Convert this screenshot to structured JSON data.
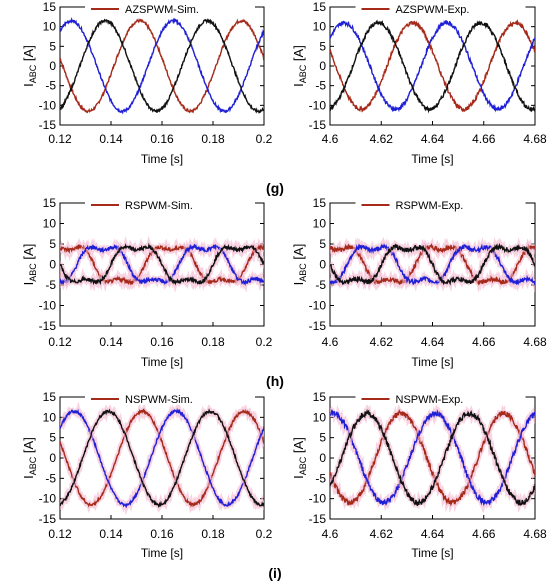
{
  "colors": {
    "phase_a": "#a52a1a",
    "phase_b": "#1f1fd6",
    "phase_c": "#111111",
    "shade": "#f4b6cf"
  },
  "panel_labels": [
    "(g)",
    "(h)",
    "(i)"
  ],
  "chart_data": [
    {
      "type": "line",
      "legend": "AZSPWM-Sim.",
      "ylabel": "I_ABC [A]",
      "xlabel": "Time [s]",
      "xlim": [
        0.12,
        0.2
      ],
      "ylim": [
        -15,
        15
      ],
      "xticks": [
        "0.12",
        "0.14",
        "0.16",
        "0.18",
        "0.2"
      ],
      "yticks": [
        "-15",
        "-10",
        "-5",
        "0",
        "5",
        "10",
        "15"
      ],
      "amplitude": 11.5,
      "period": 0.04,
      "phase_a_at_xmin": 170,
      "noise": 0.35,
      "shaded": false
    },
    {
      "type": "line",
      "legend": "AZSPWM-Exp.",
      "ylabel": "I_ABC [A]",
      "xlabel": "Time [s]",
      "xlim": [
        4.6,
        4.68
      ],
      "ylim": [
        -15,
        15
      ],
      "xticks": [
        "4.6",
        "4.62",
        "4.64",
        "4.66",
        "4.68"
      ],
      "yticks": [
        "-15",
        "-10",
        "-5",
        "0",
        "5",
        "10",
        "15"
      ],
      "amplitude": 11,
      "period": 0.04,
      "phase_a_at_xmin": 160,
      "noise": 0.5,
      "shaded": false
    },
    {
      "type": "line",
      "legend": "RSPWM-Sim.",
      "ylabel": "I_ABC [A]",
      "xlabel": "Time [s]",
      "xlim": [
        0.12,
        0.2
      ],
      "ylim": [
        -15,
        15
      ],
      "xticks": [
        "0.12",
        "0.14",
        "0.16",
        "0.18",
        "0.2"
      ],
      "yticks": [
        "-15",
        "-10",
        "-5",
        "0",
        "5",
        "10",
        "15"
      ],
      "amplitude": 5,
      "period": 0.04,
      "phase_a_at_xmin": 60,
      "noise": 0.45,
      "shaded": true
    },
    {
      "type": "line",
      "legend": "RSPWM-Exp.",
      "ylabel": "I_ABC [A]",
      "xlabel": "Time [s]",
      "xlim": [
        4.6,
        4.68
      ],
      "ylim": [
        -15,
        15
      ],
      "xticks": [
        "4.6",
        "4.62",
        "4.64",
        "4.66",
        "4.68"
      ],
      "yticks": [
        "-15",
        "-10",
        "-5",
        "0",
        "5",
        "10",
        "15"
      ],
      "amplitude": 5,
      "period": 0.04,
      "phase_a_at_xmin": 60,
      "noise": 0.55,
      "shaded": true
    },
    {
      "type": "line",
      "legend": "NSPWM-Sim.",
      "ylabel": "I_ABC [A]",
      "xlabel": "Time [s]",
      "xlim": [
        0.12,
        0.2
      ],
      "ylim": [
        -15,
        15
      ],
      "xticks": [
        "0.12",
        "0.14",
        "0.16",
        "0.18",
        "0.2"
      ],
      "yticks": [
        "-15",
        "-10",
        "-5",
        "0",
        "5",
        "10",
        "15"
      ],
      "amplitude": 11.5,
      "period": 0.04,
      "phase_a_at_xmin": 160,
      "noise": 0.35,
      "shaded": true
    },
    {
      "type": "line",
      "legend": "NSPWM-Exp.",
      "ylabel": "I_ABC [A]",
      "xlabel": "Time [s]",
      "xlim": [
        4.6,
        4.68
      ],
      "ylim": [
        -15,
        15
      ],
      "xticks": [
        "4.6",
        "4.62",
        "4.64",
        "4.66",
        "4.68"
      ],
      "yticks": [
        "-15",
        "-10",
        "-5",
        "0",
        "5",
        "10",
        "15"
      ],
      "amplitude": 11,
      "period": 0.04,
      "phase_a_at_xmin": 200,
      "noise": 0.7,
      "shaded": true
    }
  ]
}
